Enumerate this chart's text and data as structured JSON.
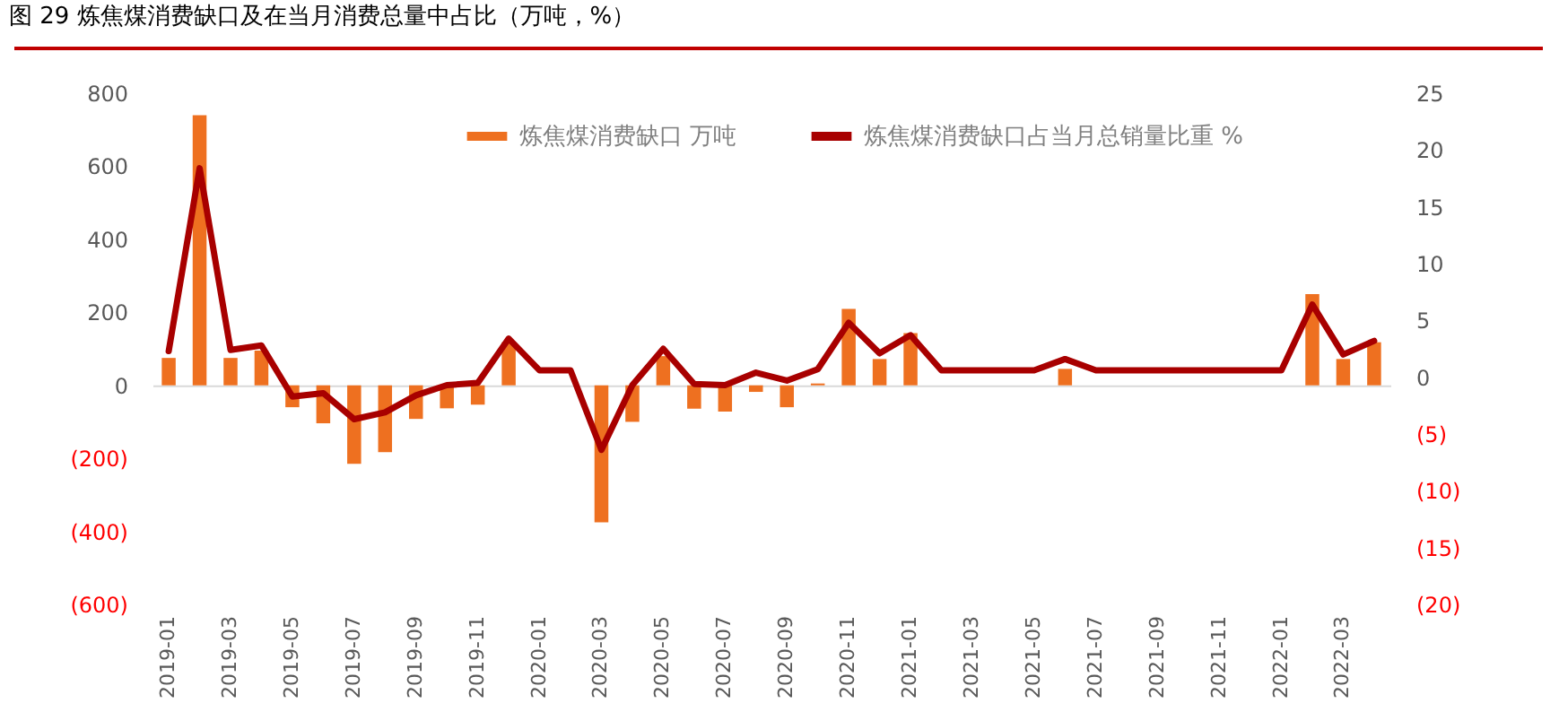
{
  "chart_data": {
    "type": "bar",
    "title": "图 29 炼焦煤消费缺口及在当月消费总量中占比（万吨，%）",
    "categories": [
      "2019-01",
      null,
      "2019-03",
      null,
      "2019-05",
      null,
      "2019-07",
      null,
      "2019-09",
      null,
      "2019-11",
      null,
      "2020-01",
      null,
      "2020-03",
      null,
      "2020-05",
      null,
      "2020-07",
      null,
      "2020-09",
      null,
      "2020-11",
      null,
      "2021-01",
      null,
      "2021-03",
      null,
      "2021-05",
      null,
      "2021-07",
      null,
      "2021-09",
      null,
      "2021-11",
      null,
      "2022-01",
      null,
      "2022-03",
      null
    ],
    "series": [
      {
        "name": "炼焦煤消费缺口 万吨",
        "color": "#ee7020",
        "values": [
          75,
          740,
          75,
          95,
          -60,
          -104,
          -215,
          -183,
          -92,
          -63,
          -53,
          118,
          0,
          0,
          -375,
          -100,
          80,
          -64,
          -72,
          -18,
          -60,
          5,
          209,
          72,
          143,
          0,
          0,
          0,
          0,
          45,
          0,
          0,
          0,
          0,
          0,
          0,
          0,
          250,
          72,
          118
        ]
      },
      {
        "name": "炼焦煤消费缺口占当月总销量比重 %",
        "type": "line",
        "axis": "y2",
        "color": "#a80000",
        "values": [
          2.3,
          18.4,
          2.4,
          2.8,
          -1.7,
          -1.4,
          -3.7,
          -3.1,
          -1.6,
          -0.7,
          -0.5,
          3.4,
          0.6,
          0.6,
          -6.4,
          -0.7,
          2.5,
          -0.6,
          -0.7,
          0.4,
          -0.3,
          0.7,
          4.8,
          2.1,
          3.7,
          0.6,
          0.6,
          0.6,
          0.6,
          1.6,
          0.6,
          0.6,
          0.6,
          0.6,
          0.6,
          0.6,
          0.6,
          6.4,
          2.0,
          3.2
        ]
      }
    ],
    "ylim": [
      -600,
      800
    ],
    "yticks": [
      {
        "value": -600,
        "label": "(600)"
      },
      {
        "value": -400,
        "label": "(400)"
      },
      {
        "value": -200,
        "label": "(200)"
      },
      0,
      200,
      400,
      600,
      800
    ],
    "y2lim": [
      -20,
      25
    ],
    "y2ticks": [
      {
        "value": -20,
        "label": "(20)"
      },
      {
        "value": -15,
        "label": "(15)"
      },
      {
        "value": -10,
        "label": "(10)"
      },
      {
        "value": -5,
        "label": "(5)"
      },
      0,
      5,
      10,
      15,
      20,
      25
    ],
    "legend": "top"
  }
}
